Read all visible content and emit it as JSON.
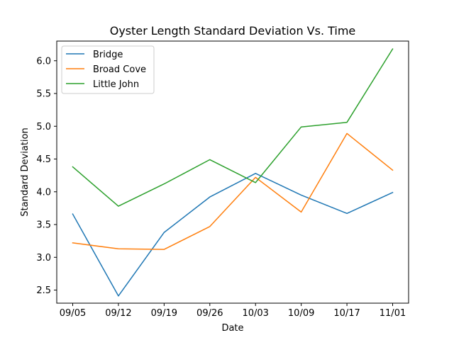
{
  "chart_data": {
    "type": "line",
    "title": "Oyster Length Standard Deviation Vs. Time",
    "xlabel": "Date",
    "ylabel": "Standard Deviation",
    "categories": [
      "09/05",
      "09/12",
      "09/19",
      "09/26",
      "10/03",
      "10/09",
      "10/17",
      "11/01"
    ],
    "ylim": [
      2.3,
      6.3
    ],
    "yticks": [
      "2.5",
      "3.0",
      "3.5",
      "4.0",
      "4.5",
      "5.0",
      "5.5",
      "6.0"
    ],
    "grid": false,
    "legend_position": "top-left",
    "series": [
      {
        "name": "Bridge",
        "color": "#1f77b4",
        "values": [
          3.66,
          2.41,
          3.38,
          3.92,
          4.28,
          3.95,
          3.67,
          3.99
        ]
      },
      {
        "name": "Broad Cove",
        "color": "#ff7f0e",
        "values": [
          3.22,
          3.13,
          3.12,
          3.47,
          4.22,
          3.69,
          4.89,
          4.33
        ]
      },
      {
        "name": "Little John",
        "color": "#2ca02c",
        "values": [
          4.38,
          3.78,
          4.12,
          4.49,
          4.14,
          4.99,
          5.06,
          6.18
        ]
      }
    ]
  }
}
